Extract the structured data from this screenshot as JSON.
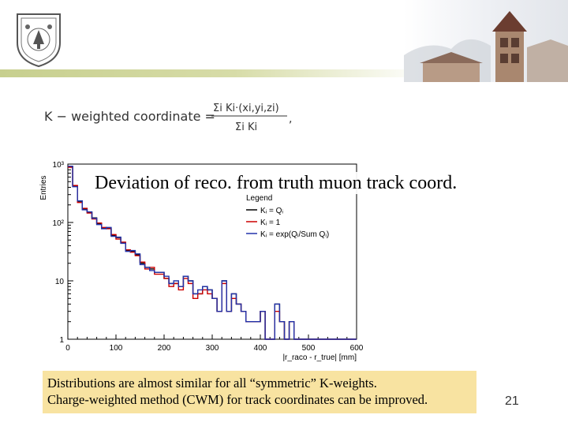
{
  "slide": {
    "chart_title": "Deviation of reco. from truth muon track coord.",
    "caption_line1": "Distributions are almost similar for all “symmetric” K-weights.",
    "caption_line2": "Charge-weighted method (CWM) for track coordinates can be improved.",
    "page_number": "21",
    "formula": {
      "lhs": "K − weighted coordinate =",
      "numerator": "Σi Ki·(xi,yi,zi)",
      "denominator": "Σi Ki"
    }
  },
  "chart_data": {
    "type": "line",
    "step": true,
    "ylabel": "Entries",
    "xlabel": "|r_raco - r_true| [mm]",
    "ylog": true,
    "xlim": [
      0,
      600
    ],
    "ylim": [
      1,
      1000
    ],
    "x_ticks": [
      0,
      100,
      200,
      300,
      400,
      500,
      600
    ],
    "y_ticks": [
      {
        "value": 1,
        "label": "1"
      },
      {
        "value": 10,
        "label": "10"
      },
      {
        "value": 100,
        "label": "10²"
      },
      {
        "value": 1000,
        "label": "10³"
      }
    ],
    "legend": {
      "title": "Legend",
      "position": "top-right"
    },
    "bin_width": 10,
    "series": [
      {
        "name": "Kᵢ = Qᵢ",
        "color": "#000000",
        "values": [
          900,
          420,
          230,
          170,
          150,
          120,
          95,
          80,
          80,
          60,
          55,
          45,
          33,
          32,
          28,
          20,
          17,
          16,
          14,
          14,
          11,
          9,
          9,
          8,
          12,
          10,
          6,
          6,
          8,
          7,
          5,
          3,
          10,
          3,
          6,
          4,
          3,
          2,
          2,
          2,
          3,
          1,
          1,
          4,
          2,
          1,
          2,
          1,
          1,
          1,
          1,
          1,
          1,
          1,
          1,
          1,
          1,
          1,
          1,
          1
        ]
      },
      {
        "name": "Kᵢ = 1",
        "color": "#cc0000",
        "values": [
          880,
          430,
          220,
          175,
          145,
          115,
          98,
          82,
          78,
          62,
          52,
          46,
          34,
          31,
          27,
          21,
          16,
          17,
          13,
          13,
          11,
          8,
          9,
          7,
          11,
          9,
          5,
          6,
          7,
          6,
          5,
          3,
          9,
          3,
          5,
          4,
          3,
          2,
          2,
          2,
          3,
          1,
          1,
          3,
          2,
          1,
          2,
          1,
          1,
          1,
          1,
          1,
          1,
          1,
          1,
          1,
          1,
          1,
          1,
          1
        ]
      },
      {
        "name": "Kᵢ = exp(Qᵢ/Sum Qᵢ)",
        "color": "#2233aa",
        "values": [
          920,
          410,
          235,
          165,
          152,
          118,
          92,
          78,
          82,
          58,
          56,
          44,
          32,
          33,
          29,
          19,
          17,
          15,
          14,
          14,
          12,
          9,
          10,
          8,
          12,
          10,
          6,
          7,
          8,
          7,
          5,
          3,
          10,
          3,
          6,
          4,
          3,
          2,
          2,
          2,
          3,
          1,
          1,
          4,
          2,
          1,
          2,
          1,
          1,
          1,
          1,
          1,
          1,
          1,
          1,
          1,
          1,
          1,
          1,
          1
        ]
      }
    ]
  }
}
